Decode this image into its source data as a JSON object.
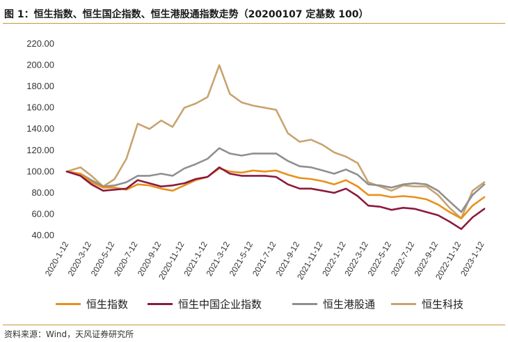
{
  "figure": {
    "title": "图 1：恒生指数、恒生国企指数、恒生港股通指数走势（20200107 定基数 100）",
    "source": "资料来源：Wind，天风证券研究所"
  },
  "chart_data": {
    "type": "line",
    "title": "图 1：恒生指数、恒生国企指数、恒生港股通指数走势（20200107 定基数 100）",
    "xlabel": "",
    "ylabel": "",
    "ylim": [
      40,
      220
    ],
    "y_ticks": [
      "220.00",
      "200.00",
      "180.00",
      "160.00",
      "140.00",
      "120.00",
      "100.00",
      "80.00",
      "60.00",
      "40.00"
    ],
    "x_ticks": [
      "2020-1-12",
      "2020-3-12",
      "2020-5-12",
      "2020-7-12",
      "2020-9-12",
      "2020-11-12",
      "2021-1-12",
      "2021-3-12",
      "2021-5-12",
      "2021-7-12",
      "2021-9-12",
      "2021-11-12",
      "2022-1-12",
      "2022-3-12",
      "2022-5-12",
      "2022-7-12",
      "2022-9-12",
      "2022-11-12",
      "2023-1-12"
    ],
    "grid": false,
    "legend_position": "bottom",
    "x": [
      "2020-01-07",
      "2020-02-12",
      "2020-03-12",
      "2020-04-12",
      "2020-05-12",
      "2020-06-12",
      "2020-07-12",
      "2020-08-12",
      "2020-09-12",
      "2020-10-12",
      "2020-11-12",
      "2020-12-12",
      "2021-01-12",
      "2021-02-12",
      "2021-03-12",
      "2021-04-12",
      "2021-05-12",
      "2021-06-12",
      "2021-07-12",
      "2021-08-12",
      "2021-09-12",
      "2021-10-12",
      "2021-11-12",
      "2021-12-12",
      "2022-01-12",
      "2022-02-12",
      "2022-03-12",
      "2022-04-12",
      "2022-05-12",
      "2022-06-12",
      "2022-07-12",
      "2022-08-12",
      "2022-09-12",
      "2022-10-12",
      "2022-11-12",
      "2022-12-12",
      "2023-01-12"
    ],
    "series": [
      {
        "name": "恒生指数",
        "color": "#e8901a",
        "values": [
          100,
          98,
          90,
          85,
          85,
          83,
          88,
          87,
          84,
          82,
          87,
          92,
          95,
          103,
          100,
          99,
          101,
          100,
          101,
          97,
          94,
          93,
          91,
          88,
          92,
          86,
          78,
          78,
          76,
          77,
          76,
          74,
          69,
          62,
          56,
          68,
          76
        ]
      },
      {
        "name": "恒生中国企业指数",
        "color": "#8b1a3c",
        "values": [
          100,
          96,
          88,
          82,
          83,
          84,
          92,
          89,
          86,
          87,
          89,
          93,
          95,
          104,
          98,
          96,
          96,
          96,
          95,
          88,
          84,
          84,
          82,
          80,
          84,
          77,
          68,
          67,
          64,
          66,
          65,
          62,
          59,
          53,
          46,
          57,
          65
        ]
      },
      {
        "name": "恒生港股通",
        "color": "#8f8f8f",
        "values": [
          100,
          98,
          92,
          86,
          87,
          90,
          96,
          96,
          98,
          96,
          103,
          107,
          112,
          122,
          117,
          115,
          117,
          117,
          117,
          110,
          105,
          104,
          101,
          98,
          102,
          97,
          88,
          87,
          85,
          88,
          89,
          88,
          82,
          72,
          62,
          78,
          88
        ]
      },
      {
        "name": "恒生科技",
        "color": "#c8a36e",
        "values": [
          100,
          104,
          96,
          86,
          93,
          112,
          145,
          140,
          148,
          142,
          160,
          164,
          170,
          200,
          173,
          165,
          162,
          160,
          158,
          136,
          128,
          130,
          125,
          118,
          114,
          108,
          90,
          86,
          82,
          87,
          86,
          86,
          78,
          66,
          56,
          82,
          90
        ]
      }
    ]
  }
}
